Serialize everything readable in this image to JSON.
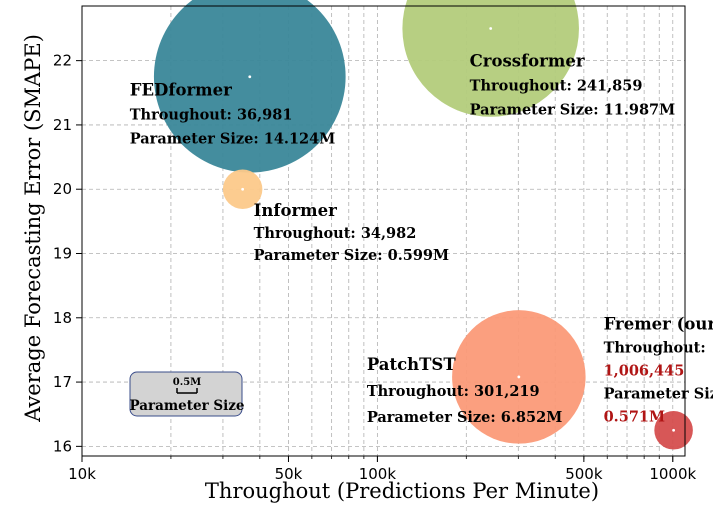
{
  "chart_data": {
    "type": "scatter",
    "xlabel": "Throughout (Predictions Per Minute)",
    "ylabel": "Average Forecasting Error (SMAPE)",
    "xscale": "log",
    "xlim": [
      10000,
      1100000
    ],
    "ylim": [
      15.85,
      22.85
    ],
    "x_ticks": [
      {
        "value": 10000,
        "label": "10k"
      },
      {
        "value": 50000,
        "label": "50k"
      },
      {
        "value": 100000,
        "label": "100k"
      },
      {
        "value": 500000,
        "label": "500k"
      },
      {
        "value": 1000000,
        "label": "1000k"
      }
    ],
    "y_ticks": [
      16,
      17,
      18,
      19,
      20,
      21,
      22
    ],
    "grid": true,
    "points": [
      {
        "name": "Crossformer",
        "x": 241859,
        "y": 22.5,
        "param_size_m": 11.987,
        "color": "#b3cc7b",
        "throughput_label": "Throughout: 241,859",
        "param_label": "Parameter Size: 11.987M"
      },
      {
        "name": "FEDformer",
        "x": 36981,
        "y": 21.75,
        "param_size_m": 14.124,
        "color": "#3a8799",
        "throughput_label": "Throughout: 36,981",
        "param_label": "Parameter Size: 14.124M"
      },
      {
        "name": "Informer",
        "x": 34982,
        "y": 20.0,
        "param_size_m": 0.599,
        "color": "#fcc98a",
        "throughput_label": "Throughout: 34,982",
        "param_label": "Parameter Size: 0.599M"
      },
      {
        "name": "PatchTST",
        "x": 301219,
        "y": 17.08,
        "param_size_m": 6.852,
        "color": "#fb9a78",
        "throughput_label": "Throughout: 301,219",
        "param_label": "Parameter Size: 6.852M"
      },
      {
        "name": "Fremer (ours)",
        "x": 1006445,
        "y": 16.25,
        "param_size_m": 0.571,
        "color": "#d54e4e",
        "throughput_label": "Throughout:",
        "throughput_value": "1,006,445",
        "param_label": "Parameter Size:",
        "param_value": "0.571M"
      }
    ],
    "legend": {
      "scale_label": "0.5M",
      "title": "Parameter Size",
      "position": "bottom-left"
    }
  }
}
